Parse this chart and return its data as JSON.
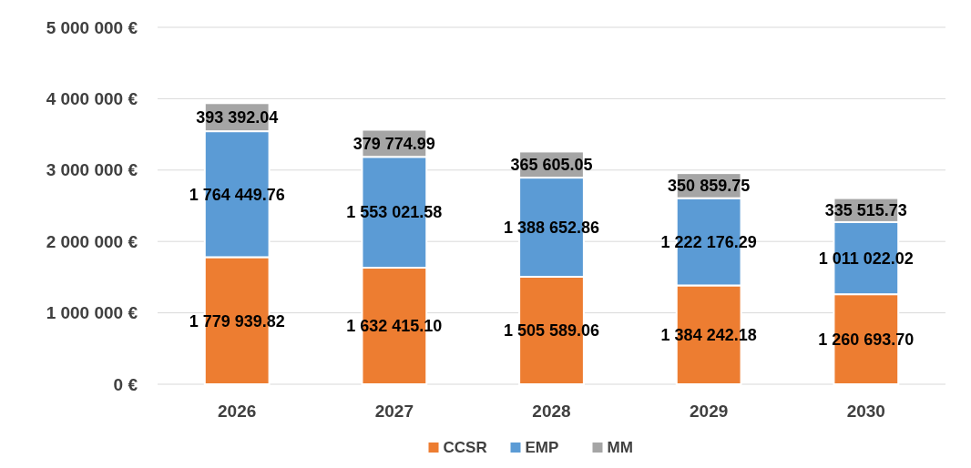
{
  "chart_data": {
    "type": "bar",
    "stacked": true,
    "categories": [
      "2026",
      "2027",
      "2028",
      "2029",
      "2030"
    ],
    "series": [
      {
        "name": "CCSR",
        "color": "#ed7d31",
        "values": [
          1779939.82,
          1632415.1,
          1505589.06,
          1384242.18,
          1260693.7
        ],
        "value_labels": [
          "1 779 939.82",
          "1 632 415.10",
          "1 505 589.06",
          "1 384 242.18",
          "1 260 693.70"
        ]
      },
      {
        "name": "EMP",
        "color": "#5b9bd5",
        "values": [
          1764449.76,
          1553021.58,
          1388652.86,
          1222176.29,
          1011022.02
        ],
        "value_labels": [
          "1 764 449.76",
          "1 553 021.58",
          "1 388 652.86",
          "1 222 176.29",
          "1 011 022.02"
        ]
      },
      {
        "name": "MM",
        "color": "#a5a5a5",
        "values": [
          393392.04,
          379774.99,
          365605.05,
          350859.75,
          335515.73
        ],
        "value_labels": [
          "393 392.04",
          "379 774.99",
          "365 605.05",
          "350 859.75",
          "335 515.73"
        ]
      }
    ],
    "ylim": [
      0,
      5000000
    ],
    "yticks": [
      {
        "value": 0,
        "label": "0 €"
      },
      {
        "value": 1000000,
        "label": "1 000 000 €"
      },
      {
        "value": 2000000,
        "label": "2 000 000 €"
      },
      {
        "value": 3000000,
        "label": "3 000 000 €"
      },
      {
        "value": 4000000,
        "label": "4 000 000 €"
      },
      {
        "value": 5000000,
        "label": "5 000 000 €"
      }
    ],
    "grid": "y",
    "legend": "bottom"
  }
}
